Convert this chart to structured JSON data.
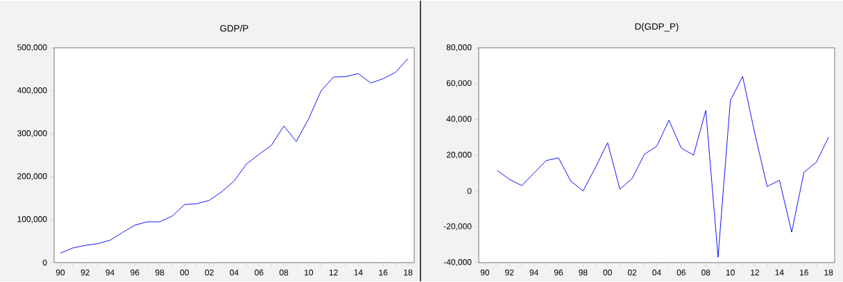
{
  "chart_data": [
    {
      "type": "line",
      "title": "GDP/P",
      "color": "#0000ff",
      "categories": [
        "90",
        null,
        "92",
        null,
        "94",
        null,
        "96",
        null,
        "98",
        null,
        "00",
        null,
        "02",
        null,
        "04",
        null,
        "06",
        null,
        "08",
        null,
        "10",
        null,
        "12",
        null,
        "14",
        null,
        "16",
        null,
        "18"
      ],
      "values": [
        22000,
        34000,
        40000,
        44000,
        52000,
        70000,
        87000,
        95000,
        95000,
        108000,
        135000,
        137000,
        145000,
        165000,
        190000,
        230000,
        252000,
        273000,
        318000,
        282000,
        335000,
        400000,
        432000,
        433000,
        440000,
        418000,
        428000,
        443000,
        475000
      ],
      "ylim": [
        0,
        500000
      ],
      "yticks": [
        0,
        {
          "value": 100000,
          "label": "100,000"
        },
        {
          "value": 200000,
          "label": "200,000"
        },
        {
          "value": 300000,
          "label": "300,000"
        },
        {
          "value": 400000,
          "label": "400,000"
        },
        {
          "value": 500000,
          "label": "500,000"
        }
      ]
    },
    {
      "type": "line",
      "title": "D(GDP_P)",
      "color": "#0000ff",
      "categories": [
        "90",
        null,
        "92",
        null,
        "94",
        null,
        "96",
        null,
        "98",
        null,
        "00",
        null,
        "02",
        null,
        "04",
        null,
        "06",
        null,
        "08",
        null,
        "10",
        null,
        "12",
        null,
        "14",
        null,
        "16",
        null,
        "18"
      ],
      "values": [
        null,
        11500,
        6500,
        3000,
        10000,
        17000,
        18500,
        5500,
        0,
        13000,
        27000,
        1000,
        7000,
        20500,
        25000,
        39500,
        24000,
        20000,
        45000,
        -37000,
        50500,
        64000,
        32000,
        2500,
        6000,
        -23000,
        10500,
        16000,
        30000
      ],
      "ylim": [
        -40000,
        80000
      ],
      "yticks": [
        {
          "value": -40000,
          "label": "-40,000"
        },
        {
          "value": -20000,
          "label": "-20,000"
        },
        0,
        {
          "value": 20000,
          "label": "20,000"
        },
        {
          "value": 40000,
          "label": "40,000"
        },
        {
          "value": 60000,
          "label": "60,000"
        },
        {
          "value": 80000,
          "label": "80,000"
        }
      ]
    }
  ]
}
